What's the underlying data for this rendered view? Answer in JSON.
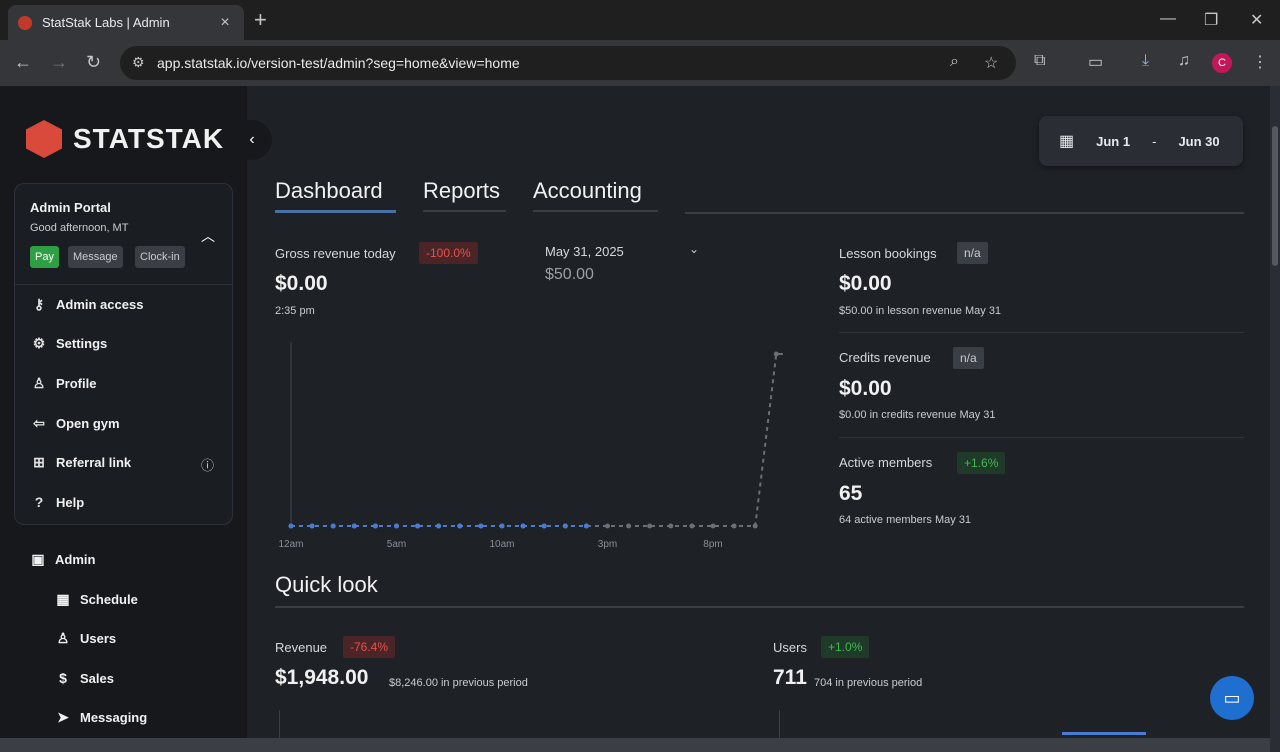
{
  "browser": {
    "tab_title": "StatStak Labs | Admin",
    "url": "app.statstak.io/version-test/admin?seg=home&view=home",
    "profile_initial": "C"
  },
  "sidebar": {
    "logo_text": "STATSTAK",
    "portal": {
      "title": "Admin Portal",
      "greeting": "Good afternoon, MT",
      "pills": [
        "Pay",
        "Message",
        "Clock-in"
      ]
    },
    "portal_menu": [
      {
        "label": "Admin access",
        "icon": "key-icon"
      },
      {
        "label": "Settings",
        "icon": "gear-icon"
      },
      {
        "label": "Profile",
        "icon": "user-icon"
      },
      {
        "label": "Open gym",
        "icon": "door-icon"
      },
      {
        "label": "Referral link",
        "icon": "gift-icon"
      },
      {
        "label": "Help",
        "icon": "help-icon"
      }
    ],
    "section": "Admin",
    "nav": [
      {
        "label": "Schedule",
        "icon": "calendar-icon"
      },
      {
        "label": "Users",
        "icon": "users-icon"
      },
      {
        "label": "Sales",
        "icon": "dollar-icon"
      },
      {
        "label": "Messaging",
        "icon": "send-icon"
      }
    ]
  },
  "date_range": {
    "from": "Jun 1",
    "separator": "-",
    "to": "Jun 30"
  },
  "tabs": [
    "Dashboard",
    "Reports",
    "Accounting"
  ],
  "gross": {
    "label": "Gross revenue today",
    "badge": "-100.0%",
    "value": "$0.00",
    "time": "2:35 pm",
    "compare_date": "May 31, 2025",
    "compare_value": "$50.00"
  },
  "kpis": [
    {
      "label": "Lesson bookings",
      "badge": "n/a",
      "value": "$0.00",
      "sub": "$50.00 in lesson revenue May 31"
    },
    {
      "label": "Credits revenue",
      "badge": "n/a",
      "value": "$0.00",
      "sub": "$0.00 in credits revenue May 31"
    },
    {
      "label": "Active members",
      "badge": "+1.6%",
      "value": "65",
      "sub": "64 active members May 31"
    }
  ],
  "chart_data": {
    "type": "line",
    "x_ticks": [
      "12am",
      "5am",
      "10am",
      "3pm",
      "8pm"
    ],
    "series": [
      {
        "values": [
          0,
          0,
          0,
          0,
          0,
          0,
          0,
          0,
          0,
          0,
          0,
          0,
          0,
          0,
          0
        ],
        "color": "#4a7bd0"
      },
      {
        "values": [
          0,
          0,
          0,
          0,
          0,
          0,
          0,
          0,
          0,
          0,
          0,
          0,
          0,
          0,
          0,
          0,
          0,
          0,
          0,
          0,
          0,
          0,
          0,
          50,
          50,
          50
        ],
        "color": "#6b6f76"
      }
    ]
  },
  "quick_look": {
    "title": "Quick look",
    "revenue": {
      "label": "Revenue",
      "badge": "-76.4%",
      "value": "$1,948.00",
      "sub": "$8,246.00 in previous period"
    },
    "users": {
      "label": "Users",
      "badge": "+1.0%",
      "value": "711",
      "sub": "704 in previous period"
    }
  }
}
